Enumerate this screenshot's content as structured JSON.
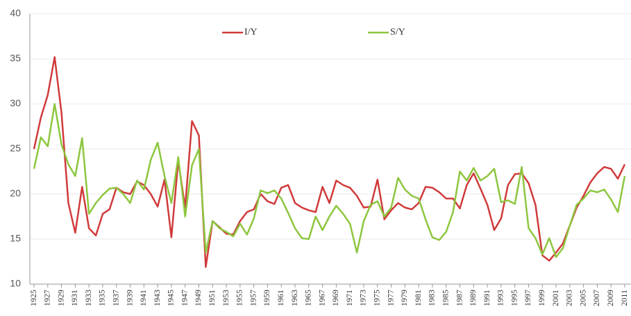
{
  "chart_data": {
    "type": "line",
    "x": [
      1925,
      1926,
      1927,
      1928,
      1929,
      1930,
      1931,
      1932,
      1933,
      1934,
      1935,
      1936,
      1937,
      1938,
      1939,
      1940,
      1941,
      1942,
      1943,
      1944,
      1945,
      1946,
      1947,
      1948,
      1949,
      1950,
      1951,
      1952,
      1953,
      1954,
      1955,
      1956,
      1957,
      1958,
      1959,
      1960,
      1961,
      1962,
      1963,
      1964,
      1965,
      1966,
      1967,
      1968,
      1969,
      1970,
      1971,
      1972,
      1973,
      1974,
      1975,
      1976,
      1977,
      1978,
      1979,
      1980,
      1981,
      1982,
      1983,
      1984,
      1985,
      1986,
      1987,
      1988,
      1989,
      1990,
      1991,
      1992,
      1993,
      1994,
      1995,
      1996,
      1997,
      1998,
      1999,
      2000,
      2001,
      2002,
      2003,
      2004,
      2005,
      2006,
      2007,
      2008,
      2009,
      2010,
      2011
    ],
    "series": [
      {
        "name": "I/Y",
        "color": "#d03a3a",
        "values": [
          25,
          28.5,
          31,
          35.2,
          29,
          19,
          15.7,
          20.8,
          16.2,
          15.4,
          17.8,
          18.3,
          20.7,
          20.2,
          20,
          21.4,
          21,
          20,
          18.6,
          21.6,
          15.2,
          23.7,
          18.5,
          28.1,
          26.5,
          11.9,
          17,
          16.3,
          15.6,
          15.5,
          17,
          18,
          18.3,
          20,
          19.2,
          18.9,
          20.7,
          21,
          19,
          18.5,
          18.2,
          18,
          20.8,
          19,
          21.5,
          21,
          20.7,
          19.8,
          18.5,
          18.6,
          21.6,
          17.2,
          18.2,
          19,
          18.5,
          18.3,
          19,
          20.8,
          20.7,
          20.2,
          19.5,
          19.5,
          18.4,
          21,
          22.3,
          20.6,
          18.8,
          16,
          17.3,
          21,
          22.2,
          22.3,
          21.2,
          18.8,
          13.2,
          12.6,
          13.5,
          14.5,
          16.5,
          18.5,
          19.8,
          21.3,
          22.3,
          23,
          22.8,
          21.7,
          23.3
        ]
      },
      {
        "name": "S/Y",
        "color": "#8dc63f",
        "values": [
          22.8,
          26.3,
          25.3,
          30,
          25.5,
          23.3,
          22,
          26.2,
          17.8,
          19,
          19.9,
          20.6,
          20.7,
          20,
          19,
          21.5,
          20.5,
          23.8,
          25.7,
          22,
          19,
          24.1,
          17.5,
          23.2,
          25,
          13.5,
          17,
          16.2,
          15.8,
          15.3,
          16.7,
          15.5,
          17.3,
          20.4,
          20.1,
          20.4,
          19.5,
          17.9,
          16.2,
          15.1,
          15,
          17.5,
          16,
          17.5,
          18.7,
          17.8,
          16.7,
          13.5,
          17,
          18.8,
          19.2,
          17.5,
          18.5,
          21.8,
          20.5,
          19.8,
          19.5,
          17.2,
          15.2,
          14.9,
          15.8,
          18,
          22.5,
          21.5,
          22.9,
          21.5,
          22,
          22.8,
          19.1,
          19.3,
          18.9,
          23,
          16.2,
          15.1,
          13.3,
          15.1,
          13,
          14,
          16.5,
          18.8,
          19.5,
          20.4,
          20.2,
          20.5,
          19.4,
          18,
          22
        ]
      }
    ],
    "xlim": [
      1925,
      2011
    ],
    "xticks": [
      1925,
      1927,
      1929,
      1931,
      1933,
      1935,
      1937,
      1939,
      1941,
      1943,
      1945,
      1947,
      1949,
      1951,
      1953,
      1955,
      1957,
      1959,
      1961,
      1963,
      1965,
      1967,
      1969,
      1971,
      1973,
      1975,
      1977,
      1979,
      1981,
      1983,
      1985,
      1987,
      1989,
      1991,
      1993,
      1995,
      1997,
      1999,
      2001,
      2003,
      2005,
      2007,
      2009,
      2011
    ],
    "ylim": [
      10,
      40
    ],
    "yticks": [
      10,
      15,
      20,
      25,
      30,
      35,
      40
    ],
    "grid": true,
    "legend": "top"
  }
}
